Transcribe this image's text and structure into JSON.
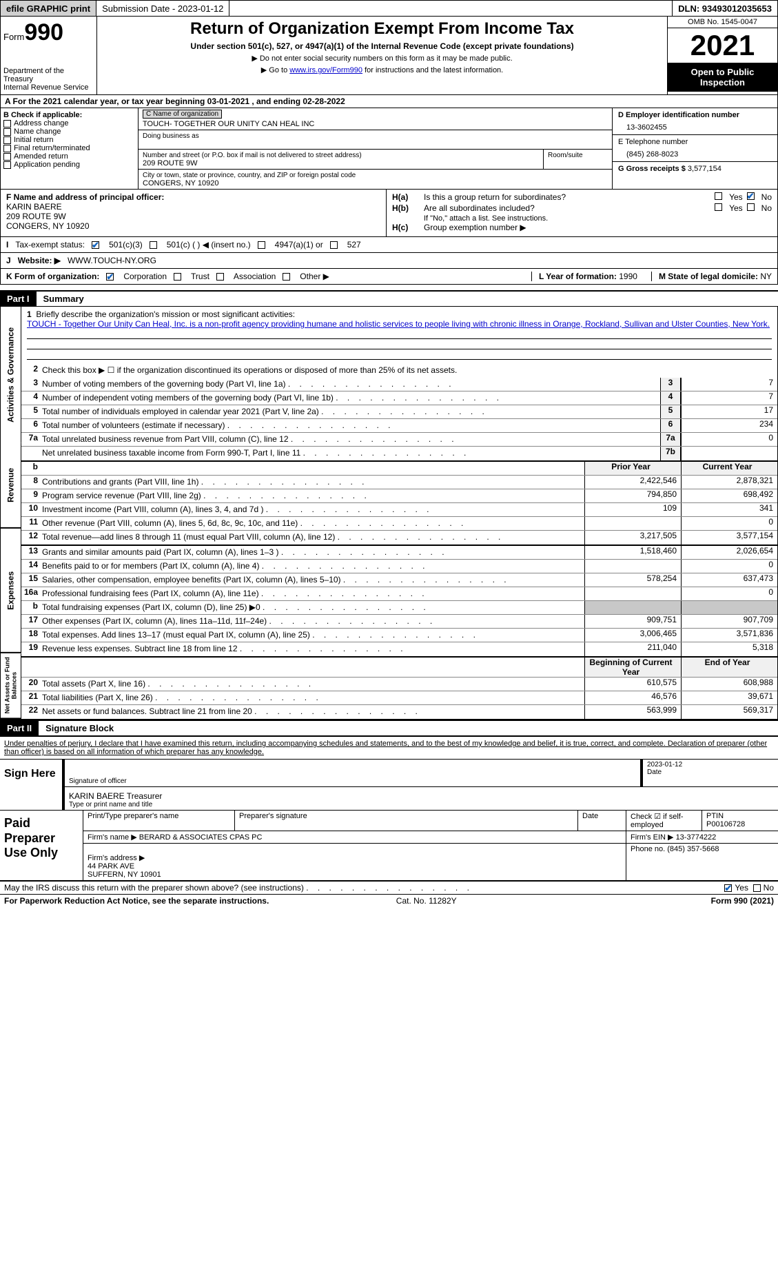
{
  "top": {
    "efile": "efile GRAPHIC print",
    "submission": "Submission Date - 2023-01-12",
    "dln": "DLN: 93493012035653"
  },
  "header": {
    "form": "Form",
    "num": "990",
    "dept": "Department of the Treasury\nInternal Revenue Service",
    "title": "Return of Organization Exempt From Income Tax",
    "sub": "Under section 501(c), 527, or 4947(a)(1) of the Internal Revenue Code (except private foundations)",
    "note1": "▶ Do not enter social security numbers on this form as it may be made public.",
    "note2_pre": "▶ Go to ",
    "note2_link": "www.irs.gov/Form990",
    "note2_post": " for instructions and the latest information.",
    "omb": "OMB No. 1545-0047",
    "year": "2021",
    "open": "Open to Public Inspection"
  },
  "rowA": "A For the 2021 calendar year, or tax year beginning 03-01-2021    , and ending 02-28-2022",
  "colB": {
    "hdr": "B Check if applicable:",
    "items": [
      "Address change",
      "Name change",
      "Initial return",
      "Final return/terminated",
      "Amended return",
      "Application pending"
    ]
  },
  "colC": {
    "name_lbl": "C Name of organization",
    "name": "TOUCH- TOGETHER OUR UNITY CAN HEAL INC",
    "dba_lbl": "Doing business as",
    "addr_lbl": "Number and street (or P.O. box if mail is not delivered to street address)",
    "room_lbl": "Room/suite",
    "addr": "209 ROUTE 9W",
    "city_lbl": "City or town, state or province, country, and ZIP or foreign postal code",
    "city": "CONGERS, NY  10920"
  },
  "colD": {
    "ein_lbl": "D Employer identification number",
    "ein": "13-3602455",
    "tel_lbl": "E Telephone number",
    "tel": "(845) 268-8023",
    "gross_lbl": "G Gross receipts $",
    "gross": "3,577,154"
  },
  "officer": {
    "lbl": "F  Name and address of principal officer:",
    "name": "KARIN BAERE",
    "addr1": "209 ROUTE 9W",
    "addr2": "CONGERS, NY  10920",
    "ha": "Is this a group return for subordinates?",
    "hb": "Are all subordinates included?",
    "hnote": "If \"No,\" attach a list. See instructions.",
    "hc": "Group exemption number ▶"
  },
  "status": {
    "lbl": "Tax-exempt status:",
    "o1": "501(c)(3)",
    "o2": "501(c) (  ) ◀ (insert no.)",
    "o3": "4947(a)(1) or",
    "o4": "527"
  },
  "website": {
    "lbl": "Website: ▶",
    "val": "WWW.TOUCH-NY.ORG"
  },
  "rowK": {
    "lbl": "K Form of organization:",
    "o1": "Corporation",
    "o2": "Trust",
    "o3": "Association",
    "o4": "Other ▶",
    "L_lbl": "L Year of formation:",
    "L_val": "1990",
    "M_lbl": "M State of legal domicile:",
    "M_val": "NY"
  },
  "partI": {
    "hdr": "Part I",
    "title": "Summary",
    "line1_lbl": "Briefly describe the organization's mission or most significant activities:",
    "line1_txt": "TOUCH - Together Our Unity Can Heal, Inc. is a non-profit agency providing humane and holistic services to people living with chronic illness in Orange, Rockland, Sullivan and Ulster Counties, New York.",
    "line2": "Check this box ▶ ☐  if the organization discontinued its operations or disposed of more than 25% of its net assets.",
    "sections": {
      "gov_label": "Activities & Governance",
      "rev_label": "Revenue",
      "exp_label": "Expenses",
      "net_label": "Net Assets or Fund Balances"
    },
    "gov_lines": [
      {
        "n": "3",
        "t": "Number of voting members of the governing body (Part VI, line 1a)",
        "box": "3",
        "v": "7"
      },
      {
        "n": "4",
        "t": "Number of independent voting members of the governing body (Part VI, line 1b)",
        "box": "4",
        "v": "7"
      },
      {
        "n": "5",
        "t": "Total number of individuals employed in calendar year 2021 (Part V, line 2a)",
        "box": "5",
        "v": "17"
      },
      {
        "n": "6",
        "t": "Total number of volunteers (estimate if necessary)",
        "box": "6",
        "v": "234"
      },
      {
        "n": "7a",
        "t": "Total unrelated business revenue from Part VIII, column (C), line 12",
        "box": "7a",
        "v": "0"
      },
      {
        "n": "",
        "t": "Net unrelated business taxable income from Form 990-T, Part I, line 11",
        "box": "7b",
        "v": ""
      }
    ],
    "col_prior": "Prior Year",
    "col_current": "Current Year",
    "rev_lines": [
      {
        "n": "8",
        "t": "Contributions and grants (Part VIII, line 1h)",
        "p": "2,422,546",
        "c": "2,878,321"
      },
      {
        "n": "9",
        "t": "Program service revenue (Part VIII, line 2g)",
        "p": "794,850",
        "c": "698,492"
      },
      {
        "n": "10",
        "t": "Investment income (Part VIII, column (A), lines 3, 4, and 7d )",
        "p": "109",
        "c": "341"
      },
      {
        "n": "11",
        "t": "Other revenue (Part VIII, column (A), lines 5, 6d, 8c, 9c, 10c, and 11e)",
        "p": "",
        "c": "0"
      },
      {
        "n": "12",
        "t": "Total revenue—add lines 8 through 11 (must equal Part VIII, column (A), line 12)",
        "p": "3,217,505",
        "c": "3,577,154"
      }
    ],
    "exp_lines": [
      {
        "n": "13",
        "t": "Grants and similar amounts paid (Part IX, column (A), lines 1–3 )",
        "p": "1,518,460",
        "c": "2,026,654"
      },
      {
        "n": "14",
        "t": "Benefits paid to or for members (Part IX, column (A), line 4)",
        "p": "",
        "c": "0"
      },
      {
        "n": "15",
        "t": "Salaries, other compensation, employee benefits (Part IX, column (A), lines 5–10)",
        "p": "578,254",
        "c": "637,473"
      },
      {
        "n": "16a",
        "t": "Professional fundraising fees (Part IX, column (A), line 11e)",
        "p": "",
        "c": "0"
      },
      {
        "n": "b",
        "t": "Total fundraising expenses (Part IX, column (D), line 25) ▶0",
        "p": "shade",
        "c": "shade"
      },
      {
        "n": "17",
        "t": "Other expenses (Part IX, column (A), lines 11a–11d, 11f–24e)",
        "p": "909,751",
        "c": "907,709"
      },
      {
        "n": "18",
        "t": "Total expenses. Add lines 13–17 (must equal Part IX, column (A), line 25)",
        "p": "3,006,465",
        "c": "3,571,836"
      },
      {
        "n": "19",
        "t": "Revenue less expenses. Subtract line 18 from line 12",
        "p": "211,040",
        "c": "5,318"
      }
    ],
    "col_beg": "Beginning of Current Year",
    "col_end": "End of Year",
    "net_lines": [
      {
        "n": "20",
        "t": "Total assets (Part X, line 16)",
        "p": "610,575",
        "c": "608,988"
      },
      {
        "n": "21",
        "t": "Total liabilities (Part X, line 26)",
        "p": "46,576",
        "c": "39,671"
      },
      {
        "n": "22",
        "t": "Net assets or fund balances. Subtract line 21 from line 20",
        "p": "563,999",
        "c": "569,317"
      }
    ]
  },
  "partII": {
    "hdr": "Part II",
    "title": "Signature Block",
    "intro": "Under penalties of perjury, I declare that I have examined this return, including accompanying schedules and statements, and to the best of my knowledge and belief, it is true, correct, and complete. Declaration of preparer (other than officer) is based on all information of which preparer has any knowledge.",
    "sign_here": "Sign Here",
    "sig_officer": "Signature of officer",
    "date_lbl": "Date",
    "sig_date": "2023-01-12",
    "name_title": "KARIN BAERE  Treasurer",
    "type_lbl": "Type or print name and title",
    "paid_lbl": "Paid Preparer Use Only",
    "prep_name_lbl": "Print/Type preparer's name",
    "prep_sig_lbl": "Preparer's signature",
    "prep_date_lbl": "Date",
    "check_lbl": "Check ☑ if self-employed",
    "ptin_lbl": "PTIN",
    "ptin": "P00106728",
    "firm_name_lbl": "Firm's name    ▶",
    "firm_name": "BERARD & ASSOCIATES CPAS PC",
    "firm_ein_lbl": "Firm's EIN ▶",
    "firm_ein": "13-3774222",
    "firm_addr_lbl": "Firm's address ▶",
    "firm_addr": "44 PARK AVE\nSUFFERN, NY  10901",
    "phone_lbl": "Phone no.",
    "phone": "(845) 357-5668"
  },
  "discuss": "May the IRS discuss this return with the preparer shown above? (see instructions)",
  "footer": {
    "left": "For Paperwork Reduction Act Notice, see the separate instructions.",
    "mid": "Cat. No. 11282Y",
    "right": "Form 990 (2021)"
  },
  "yes": "Yes",
  "no": "No",
  "labels": {
    "I": "I",
    "J": "J",
    "Ha": "H(a)",
    "Hb": "H(b)",
    "Hc": "H(c)",
    "b": "b",
    "l1": "1",
    "l2": "2"
  }
}
